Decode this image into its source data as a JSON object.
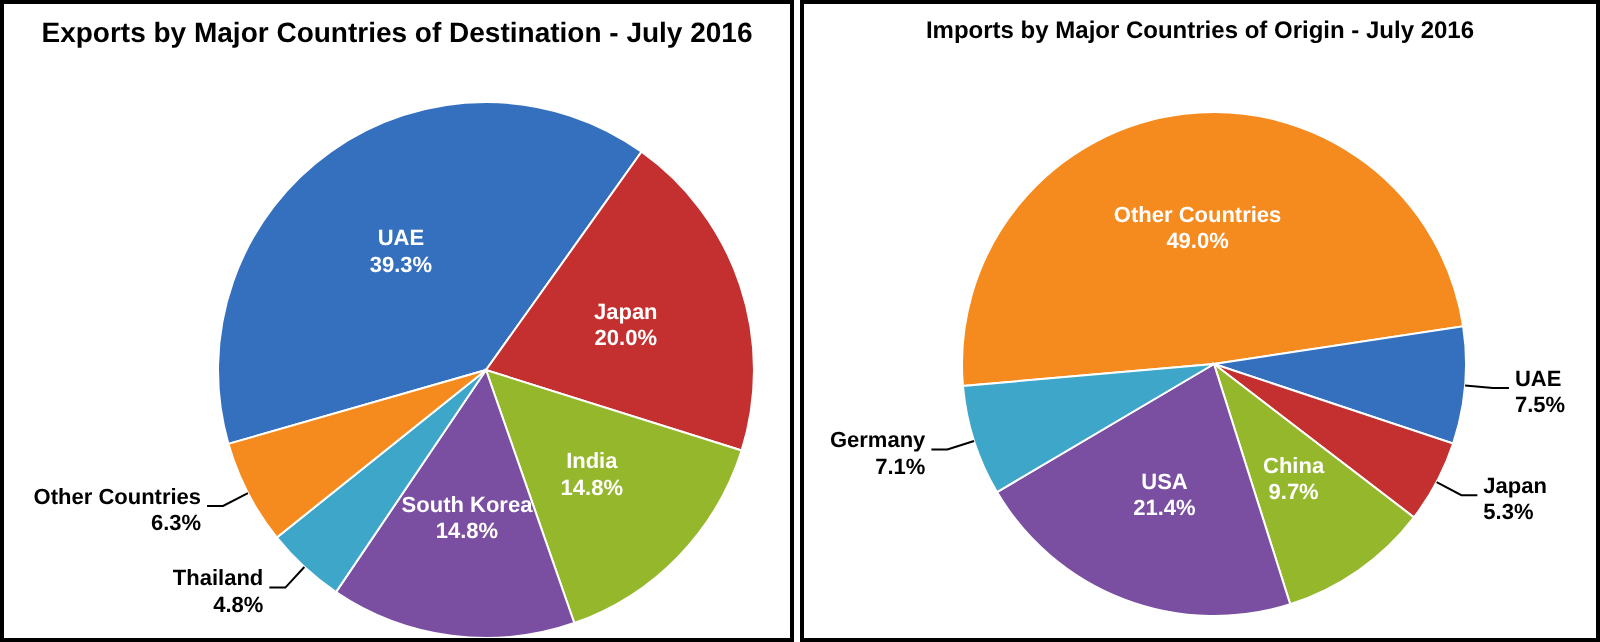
{
  "chart_data": [
    {
      "type": "pie",
      "title": "Exports by Major Countries of Destination - July 2016",
      "categories": [
        "UAE",
        "Japan",
        "India",
        "South Korea",
        "Thailand",
        "Other Countries"
      ],
      "values": [
        39.3,
        20.0,
        14.8,
        14.8,
        4.8,
        6.3
      ],
      "colors": [
        "#3570bf",
        "#c3302f",
        "#95b72c",
        "#7a4ea0",
        "#3ea7c9",
        "#f58a1f"
      ],
      "value_labels": [
        "39.3%",
        "20.0%",
        "14.8%",
        "14.8%",
        "4.8%",
        "6.3%"
      ]
    },
    {
      "type": "pie",
      "title": "Imports by Major Countries of Origin - July 2016",
      "categories": [
        "Other Countries",
        "UAE",
        "Japan",
        "China",
        "USA",
        "Germany"
      ],
      "values": [
        49.0,
        7.5,
        5.3,
        9.7,
        21.4,
        7.1
      ],
      "colors": [
        "#f58a1f",
        "#3570bf",
        "#c3302f",
        "#95b72c",
        "#7a4ea0",
        "#3ea7c9"
      ],
      "value_labels": [
        "49.0%",
        "7.5%",
        "5.3%",
        "9.7%",
        "21.4%",
        "7.1%"
      ]
    }
  ]
}
